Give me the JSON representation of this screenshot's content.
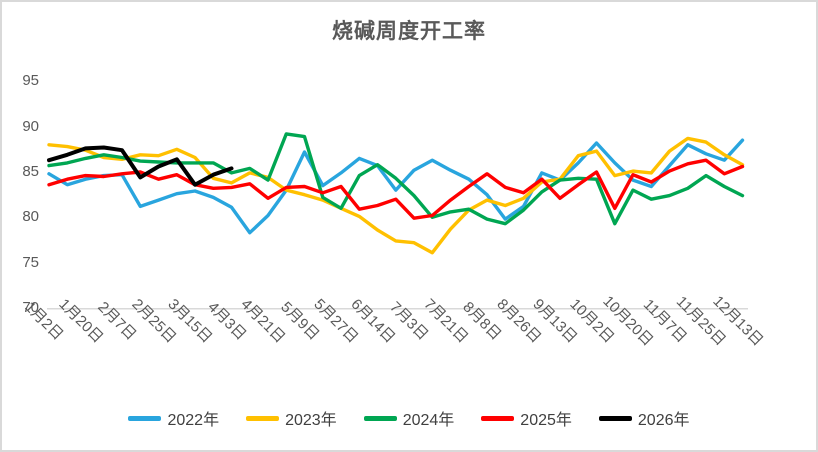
{
  "title": "烧碱周度开工率",
  "colors": {
    "axis_line": "#d9d9d9",
    "tick_text": "#595959",
    "title_text": "#595959",
    "legend_text": "#404040",
    "background": "#ffffff",
    "border": "#d9d9d9"
  },
  "chart_data": {
    "type": "line",
    "title": "烧碱周度开工率",
    "xlabel": "",
    "ylabel": "",
    "grid": false,
    "legend_position": "bottom",
    "y_axis": {
      "min": 70,
      "max": 95,
      "ticks": [
        95,
        90,
        85,
        80,
        75,
        70
      ]
    },
    "categories": [
      "1月2日",
      "1月20日",
      "2月7日",
      "2月25日",
      "3月15日",
      "4月3日",
      "4月21日",
      "5月9日",
      "5月27日",
      "6月14日",
      "7月3日",
      "7月21日",
      "8月8日",
      "8月26日",
      "9月13日",
      "10月2日",
      "10月20日",
      "11月7日",
      "11月25日",
      "12月13日"
    ],
    "points_per_label_interval": 2,
    "series": [
      {
        "name": "2022年",
        "color": "#29a5de",
        "values": [
          84.8,
          83.6,
          84.2,
          84.6,
          84.7,
          81.2,
          81.9,
          82.6,
          82.9,
          82.2,
          81.1,
          78.3,
          80.2,
          83.0,
          87.2,
          83.5,
          84.9,
          86.5,
          85.7,
          83.0,
          85.2,
          86.3,
          85.2,
          84.2,
          82.5,
          79.8,
          81.2,
          84.9,
          84.1,
          86.0,
          88.2,
          86.0,
          84.1,
          83.4,
          85.7,
          88.0,
          87.0,
          86.3,
          88.5
        ]
      },
      {
        "name": "2023年",
        "color": "#ffc000",
        "values": [
          88.0,
          87.8,
          87.4,
          86.6,
          86.4,
          86.9,
          86.8,
          87.5,
          86.6,
          84.3,
          83.8,
          84.9,
          84.4,
          83.0,
          82.5,
          81.9,
          81.0,
          80.1,
          78.6,
          77.4,
          77.2,
          76.1,
          78.7,
          80.8,
          81.9,
          81.3,
          82.1,
          83.9,
          84.2,
          86.8,
          87.3,
          84.6,
          85.1,
          84.9,
          87.3,
          88.7,
          88.3,
          86.9,
          85.8
        ]
      },
      {
        "name": "2024年",
        "color": "#00a652",
        "values": [
          85.7,
          86.0,
          86.5,
          86.9,
          86.6,
          86.2,
          86.1,
          86.0,
          86.0,
          86.0,
          84.9,
          85.4,
          84.1,
          89.2,
          88.9,
          82.2,
          81.0,
          84.6,
          85.8,
          84.3,
          82.4,
          80.0,
          80.6,
          80.9,
          79.8,
          79.3,
          80.8,
          82.8,
          84.1,
          84.3,
          84.2,
          79.3,
          83.0,
          82.0,
          82.4,
          83.2,
          84.6,
          83.4,
          82.4
        ]
      },
      {
        "name": "2025年",
        "color": "#ff0000",
        "values": [
          83.6,
          84.2,
          84.6,
          84.5,
          84.8,
          85.0,
          84.2,
          84.7,
          83.6,
          83.2,
          83.3,
          83.7,
          82.1,
          83.3,
          83.4,
          82.7,
          83.4,
          80.9,
          81.3,
          82.0,
          79.9,
          80.2,
          81.9,
          83.4,
          84.8,
          83.3,
          82.7,
          84.2,
          82.1,
          83.6,
          85.0,
          81.0,
          84.7,
          83.9,
          85.1,
          85.9,
          86.3,
          84.8,
          85.6
        ]
      },
      {
        "name": "2026年",
        "color": "#000000",
        "values": [
          86.3,
          86.9,
          87.6,
          87.7,
          87.4,
          84.4,
          85.6,
          86.4,
          83.6,
          84.7,
          85.4,
          null,
          null,
          null,
          null,
          null,
          null,
          null,
          null,
          null,
          null,
          null,
          null,
          null,
          null,
          null,
          null,
          null,
          null,
          null,
          null,
          null,
          null,
          null,
          null,
          null,
          null,
          null,
          null
        ]
      }
    ]
  }
}
